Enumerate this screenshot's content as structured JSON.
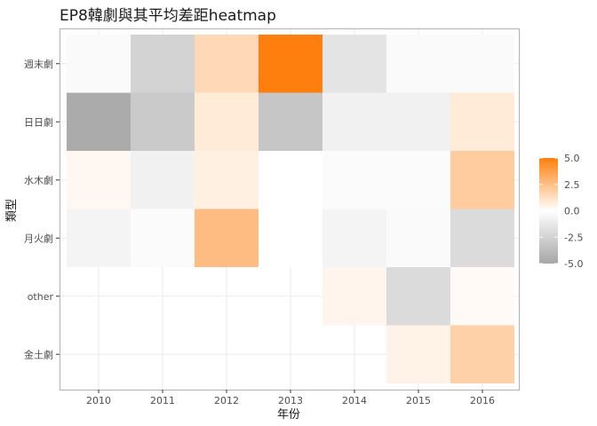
{
  "chart_data": {
    "type": "heatmap",
    "title": "EP8韓劇與其平均差距heatmap",
    "xlabel": "年份",
    "ylabel": "類型",
    "x_categories": [
      "2010",
      "2011",
      "2012",
      "2013",
      "2014",
      "2015",
      "2016"
    ],
    "y_categories": [
      "週末劇",
      "日日劇",
      "水木劇",
      "月火劇",
      "other",
      "金土劇"
    ],
    "values": [
      [
        -0.3,
        -2.5,
        1.5,
        5.0,
        -1.5,
        -0.3,
        -0.3
      ],
      [
        -4.7,
        -3.0,
        0.8,
        -3.2,
        -0.8,
        -0.8,
        0.8
      ],
      [
        0.3,
        -0.8,
        0.6,
        0.0,
        -0.2,
        -0.2,
        2.0
      ],
      [
        -0.6,
        -0.2,
        2.6,
        0.0,
        -0.6,
        -0.3,
        -2.0
      ],
      [
        null,
        null,
        null,
        null,
        0.4,
        -2.0,
        0.2
      ],
      [
        null,
        null,
        null,
        null,
        null,
        0.5,
        1.8
      ]
    ],
    "legend": {
      "position": "right",
      "ticks": [
        5.0,
        2.5,
        0.0,
        -2.5,
        -5.0
      ],
      "tick_labels": [
        "5.0",
        "2.5",
        "0.0",
        "-2.5",
        "-5.0"
      ],
      "range": [
        -5.0,
        5.0
      ]
    },
    "colors": {
      "low": "#a6a6a6",
      "mid": "#ffffff",
      "high": "#ff7f0e",
      "panel_border": "#b3b3b3",
      "grid": "#ebebeb"
    },
    "grid": true
  }
}
